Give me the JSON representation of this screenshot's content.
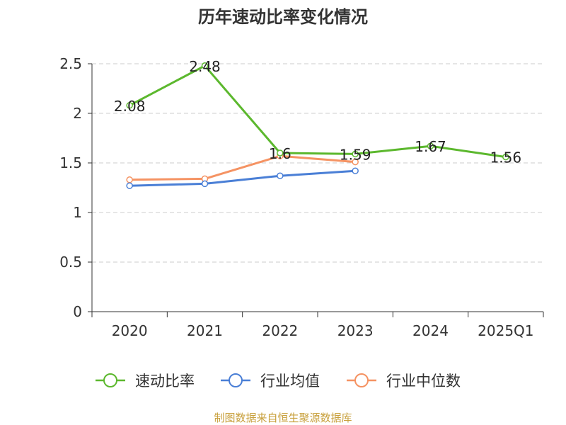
{
  "chart_data": {
    "type": "line",
    "title": "历年速动比率变化情况",
    "categories": [
      "2020",
      "2021",
      "2022",
      "2023",
      "2024",
      "2025Q1"
    ],
    "ylim": [
      0,
      2.5
    ],
    "yticks": [
      "0",
      "0.5",
      "1",
      "1.5",
      "2",
      "2.5"
    ],
    "grid": true,
    "legend_position": "bottom",
    "series": [
      {
        "name": "速动比率",
        "color": "#5cb82e",
        "values": [
          2.08,
          2.48,
          1.6,
          1.59,
          1.67,
          1.56
        ],
        "labels": [
          "2.08",
          "2.48",
          "1.6",
          "1.59",
          "1.67",
          "1.56"
        ]
      },
      {
        "name": "行业均值",
        "color": "#4a7fd6",
        "values": [
          1.27,
          1.29,
          1.37,
          1.42,
          null,
          null
        ]
      },
      {
        "name": "行业中位数",
        "color": "#f59363",
        "values": [
          1.33,
          1.34,
          1.57,
          1.51,
          null,
          null
        ]
      }
    ]
  },
  "footer": {
    "source": "制图数据来自恒生聚源数据库"
  }
}
